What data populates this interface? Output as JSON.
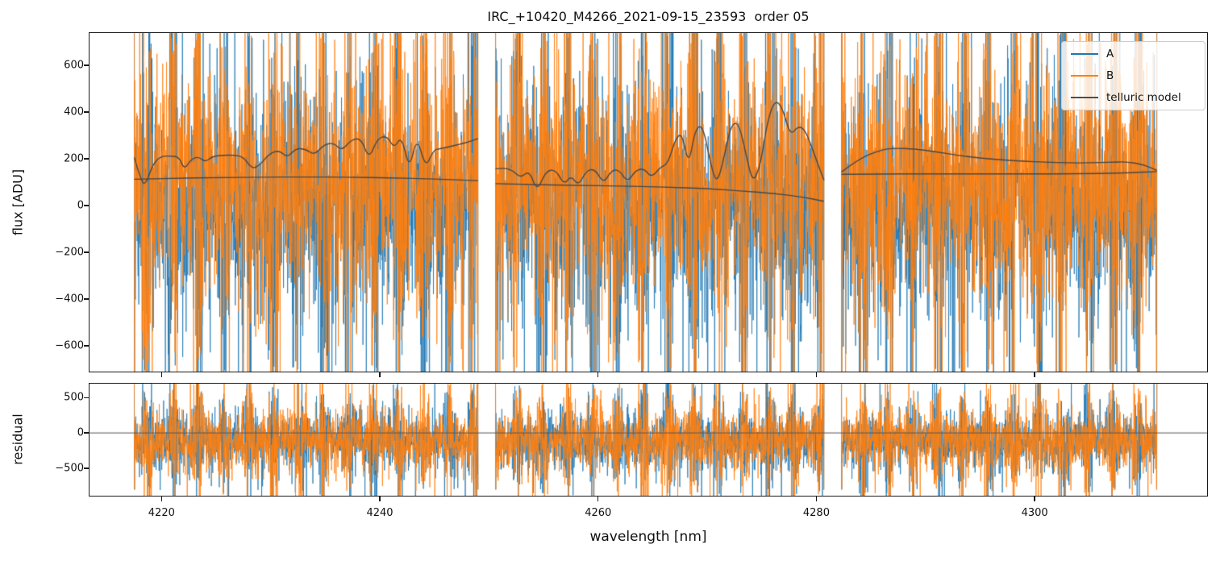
{
  "figure": {
    "title": "IRC_+10420_M4266_2021-09-15_23593  order 05",
    "background": "#ffffff",
    "text_color": "#111111",
    "spine_color": "#1a1a1a"
  },
  "x_axis": {
    "label": "wavelength [nm]",
    "tick_values": [
      4220,
      4240,
      4260,
      4280,
      4300
    ],
    "xlim": [
      4213.4,
      4315.8
    ]
  },
  "top_panel": {
    "ylabel": "flux [ADU]",
    "tick_values": [
      600,
      400,
      200,
      0,
      -200,
      -400,
      -600
    ],
    "ylim": [
      -710,
      737
    ]
  },
  "bottom_panel": {
    "ylabel": "residual",
    "tick_values": [
      500,
      0,
      -500
    ],
    "ylim": [
      -888,
      697
    ],
    "zero_line_value": 0,
    "zero_line_color": "#555555"
  },
  "legend": {
    "entries": [
      {
        "label": "A",
        "color": "#1f77b4"
      },
      {
        "label": "B",
        "color": "#ff7f0e"
      },
      {
        "label": "telluric model",
        "color": "#4d4d4d"
      }
    ]
  },
  "chart_data": {
    "type": "line",
    "title": "IRC_+10420_M4266_2021-09-15_23593  order 05",
    "xlabel": "wavelength [nm]",
    "ylabel_top": "flux [ADU]",
    "ylabel_bottom": "residual",
    "xlim": [
      4213.4,
      4315.8
    ],
    "ylim_top": [
      -710,
      737
    ],
    "ylim_bottom": [
      -888,
      697
    ],
    "grid": false,
    "legend_position": "upper right",
    "wavelength_segments_nm": [
      [
        4217.5,
        4249.0
      ],
      [
        4250.6,
        4280.7
      ],
      [
        4282.3,
        4311.2
      ]
    ],
    "series": [
      {
        "name": "A",
        "color": "#1f77b4",
        "kind": "noisy_spectrum",
        "panel": "flux",
        "mean_adu": -10,
        "std_adu": 195,
        "seed": 11
      },
      {
        "name": "B",
        "color": "#ff7f0e",
        "kind": "noisy_spectrum",
        "panel": "flux",
        "mean_adu": 80,
        "std_adu": 180,
        "seed": 23
      },
      {
        "name": "telluric model",
        "color": "#474747",
        "kind": "model",
        "panel": "flux",
        "continuum_points": [
          [
            [
              4217.5,
              112
            ],
            [
              4221,
              116
            ],
            [
              4225,
              119
            ],
            [
              4229,
              121
            ],
            [
              4233,
              122
            ],
            [
              4237,
              121
            ],
            [
              4241,
              118
            ],
            [
              4245,
              113
            ],
            [
              4249,
              106
            ]
          ],
          [
            [
              4250.6,
              93
            ],
            [
              4254,
              89
            ],
            [
              4258,
              86
            ],
            [
              4262,
              83
            ],
            [
              4266,
              79
            ],
            [
              4270,
              72
            ],
            [
              4273,
              63
            ],
            [
              4276,
              52
            ],
            [
              4278.5,
              38
            ],
            [
              4280.7,
              18
            ]
          ],
          [
            [
              4282.3,
              133
            ],
            [
              4286,
              135
            ],
            [
              4290,
              135
            ],
            [
              4294,
              135
            ],
            [
              4298,
              135
            ],
            [
              4302,
              135
            ],
            [
              4306,
              137
            ],
            [
              4309,
              140
            ],
            [
              4311.2,
              145
            ]
          ]
        ],
        "absorption_points": [
          [
            [
              4217.5,
              205
            ],
            [
              4218.1,
              110
            ],
            [
              4218.5,
              85
            ],
            [
              4219.2,
              175
            ],
            [
              4219.9,
              210
            ],
            [
              4220.8,
              212
            ],
            [
              4221.6,
              208
            ],
            [
              4222.1,
              152
            ],
            [
              4222.7,
              198
            ],
            [
              4223.4,
              209
            ],
            [
              4224.0,
              185
            ],
            [
              4224.7,
              211
            ],
            [
              4225.6,
              214
            ],
            [
              4226.6,
              216
            ],
            [
              4227.5,
              208
            ],
            [
              4228.3,
              156
            ],
            [
              4229.0,
              172
            ],
            [
              4229.9,
              223
            ],
            [
              4230.8,
              236
            ],
            [
              4231.5,
              204
            ],
            [
              4232.3,
              244
            ],
            [
              4233.2,
              241
            ],
            [
              4234.0,
              215
            ],
            [
              4234.9,
              261
            ],
            [
              4235.8,
              267
            ],
            [
              4236.5,
              233
            ],
            [
              4237.4,
              282
            ],
            [
              4238.3,
              287
            ],
            [
              4239.0,
              196
            ],
            [
              4239.8,
              289
            ],
            [
              4240.7,
              297
            ],
            [
              4241.3,
              243
            ],
            [
              4242.0,
              299
            ],
            [
              4242.7,
              150
            ],
            [
              4243.4,
              298
            ],
            [
              4244.2,
              157
            ],
            [
              4244.9,
              238
            ],
            [
              4245.6,
              243
            ],
            [
              4247.0,
              258
            ],
            [
              4248.2,
              272
            ],
            [
              4249.0,
              286
            ]
          ],
          [
            [
              4250.6,
              157
            ],
            [
              4251.4,
              161
            ],
            [
              4252.2,
              149
            ],
            [
              4252.9,
              117
            ],
            [
              4253.7,
              151
            ],
            [
              4254.4,
              58
            ],
            [
              4255.2,
              147
            ],
            [
              4256.1,
              154
            ],
            [
              4256.9,
              88
            ],
            [
              4257.5,
              128
            ],
            [
              4258.2,
              84
            ],
            [
              4258.9,
              148
            ],
            [
              4259.7,
              157
            ],
            [
              4260.5,
              93
            ],
            [
              4261.2,
              149
            ],
            [
              4261.9,
              154
            ],
            [
              4262.7,
              98
            ],
            [
              4263.4,
              149
            ],
            [
              4264.2,
              159
            ],
            [
              4264.9,
              118
            ],
            [
              4265.7,
              164
            ],
            [
              4266.4,
              178
            ],
            [
              4267.1,
              288
            ],
            [
              4267.7,
              308
            ],
            [
              4268.3,
              168
            ],
            [
              4268.9,
              328
            ],
            [
              4269.6,
              344
            ],
            [
              4270.3,
              178
            ],
            [
              4270.9,
              88
            ],
            [
              4271.6,
              218
            ],
            [
              4272.2,
              348
            ],
            [
              4272.9,
              353
            ],
            [
              4273.6,
              208
            ],
            [
              4274.2,
              93
            ],
            [
              4274.9,
              178
            ],
            [
              4275.5,
              358
            ],
            [
              4276.2,
              453
            ],
            [
              4276.9,
              418
            ],
            [
              4277.6,
              298
            ],
            [
              4278.3,
              338
            ],
            [
              4278.9,
              328
            ],
            [
              4279.6,
              248
            ],
            [
              4280.2,
              168
            ],
            [
              4280.7,
              108
            ]
          ],
          [
            [
              4282.3,
              143
            ],
            [
              4284.0,
              203
            ],
            [
              4286.0,
              238
            ],
            [
              4287.0,
              245
            ],
            [
              4289.0,
              242
            ],
            [
              4291.0,
              229
            ],
            [
              4293.0,
              214
            ],
            [
              4295.0,
              202
            ],
            [
              4297.0,
              195
            ],
            [
              4299.0,
              189
            ],
            [
              4301.0,
              185
            ],
            [
              4303.0,
              182
            ],
            [
              4305.0,
              182
            ],
            [
              4307.0,
              185
            ],
            [
              4308.5,
              187
            ],
            [
              4310.0,
              174
            ],
            [
              4311.2,
              150
            ]
          ]
        ]
      }
    ],
    "residual_series": [
      {
        "name": "A",
        "color": "#1f77b4",
        "mean": -110,
        "std": 150,
        "seed": 37
      },
      {
        "name": "B",
        "color": "#ff7f0e",
        "mean": -100,
        "std": 155,
        "seed": 53
      }
    ],
    "noise_model": {
      "points_per_nm": 48,
      "burst_period_nm": 2.3,
      "burst_gain": 1.9,
      "spike_prob": 0.045,
      "spike_gain": 2.6,
      "edge_spike_adu": 1500,
      "edge_spike_residual": 800,
      "noise_linewidth": 0.8,
      "model_linewidth": 1.4
    }
  }
}
